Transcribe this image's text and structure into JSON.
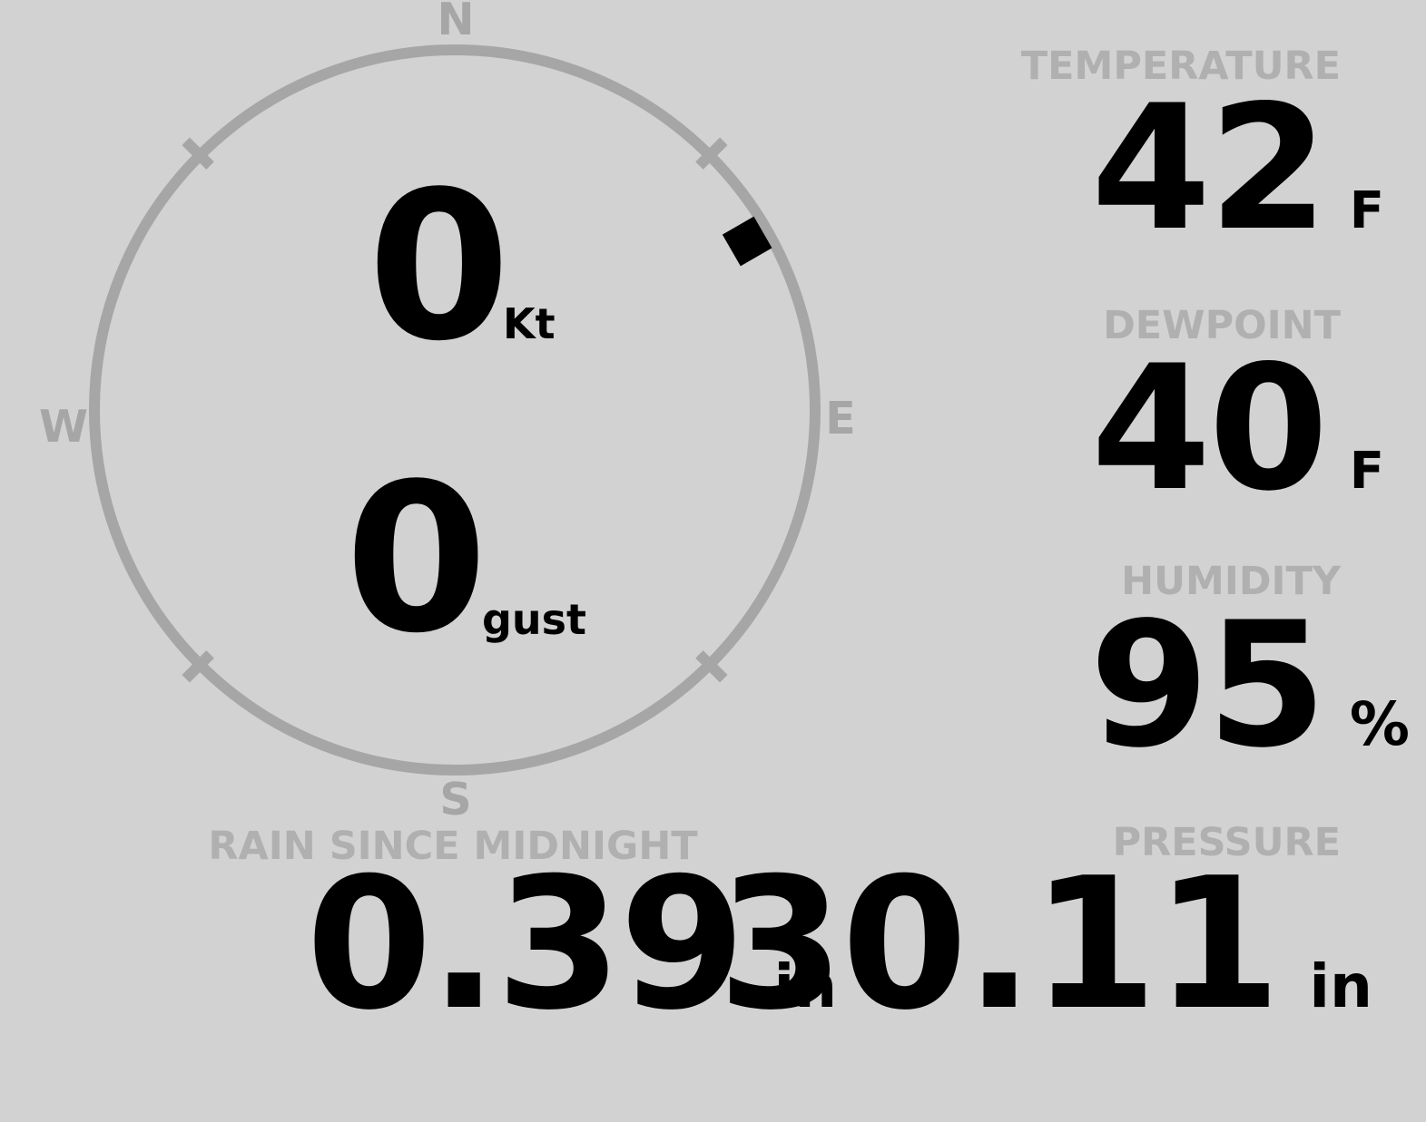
{
  "colors": {
    "background": "#d2d2d2",
    "dial_gray": "#a6a6a6",
    "label_gray": "#b0b0b0",
    "value_black": "#000000"
  },
  "wind": {
    "compass": {
      "north": "N",
      "east": "E",
      "south": "S",
      "west": "W"
    },
    "speed": {
      "value": "0",
      "unit": "Kt"
    },
    "gust": {
      "value": "0",
      "unit": "gust"
    },
    "direction_deg": 60,
    "marker_icon": "wind-direction-square"
  },
  "metrics": {
    "temperature": {
      "label": "TEMPERATURE",
      "value": "42",
      "unit": "F"
    },
    "dewpoint": {
      "label": "DEWPOINT",
      "value": "40",
      "unit": "F"
    },
    "humidity": {
      "label": "HUMIDITY",
      "value": "95",
      "unit": "%"
    },
    "rain": {
      "label": "RAIN SINCE MIDNIGHT",
      "value": "0.39",
      "unit": "in"
    },
    "pressure": {
      "label": "PRESSURE",
      "value": "30.11",
      "unit": "in"
    }
  }
}
